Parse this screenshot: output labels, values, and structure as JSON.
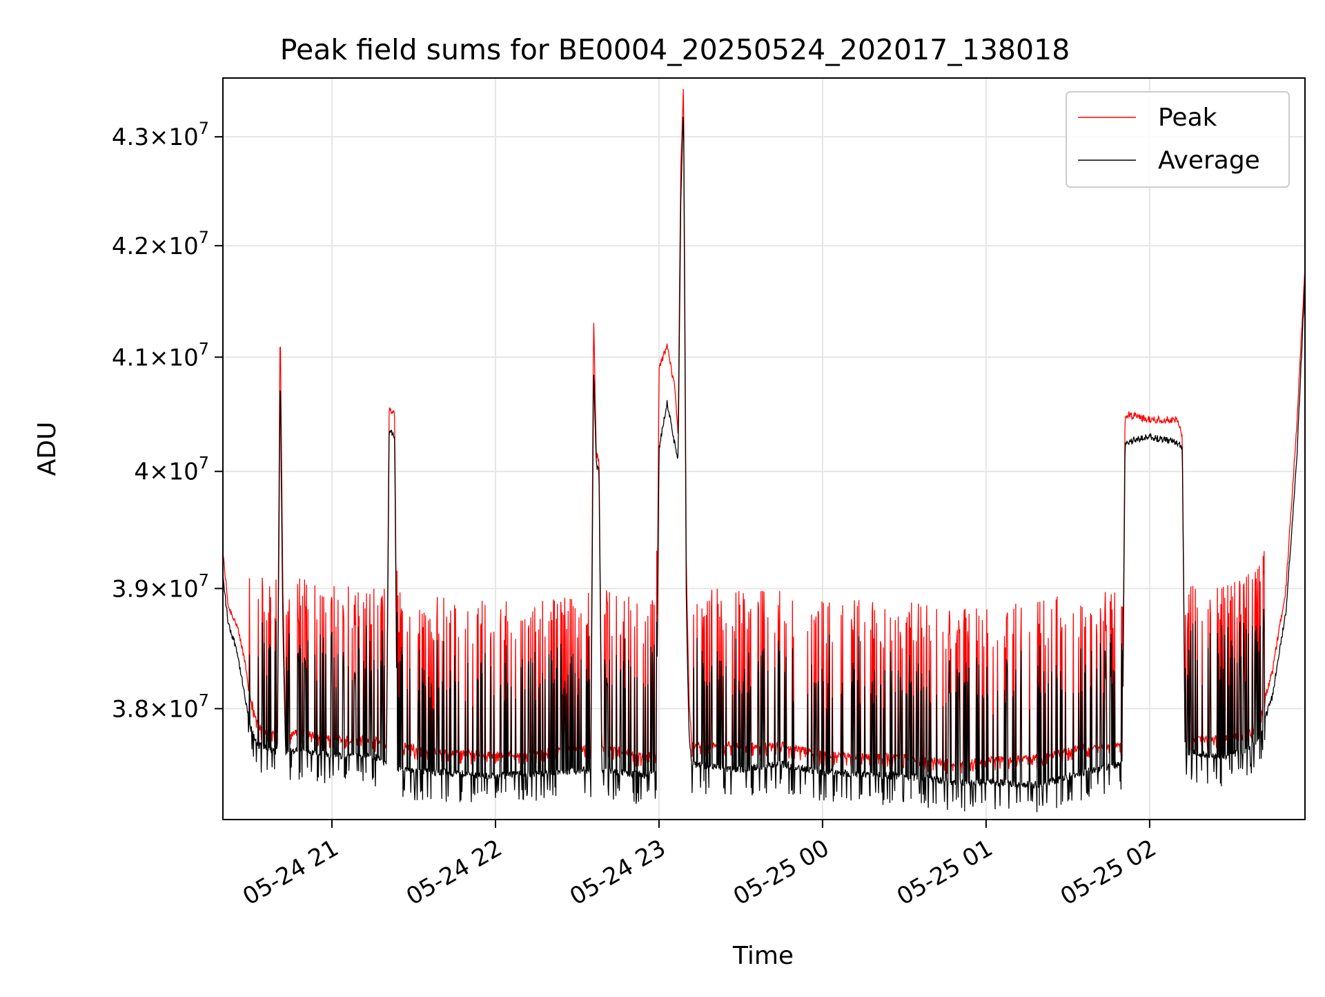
{
  "chart_data": {
    "type": "line",
    "title": "Peak field sums for BE0004_20250524_202017_138018",
    "xlabel": "Time",
    "ylabel": "ADU",
    "x_axis": {
      "type": "datetime",
      "range": [
        "2025-05-24 20:20",
        "2025-05-25 02:57"
      ],
      "ticks": [
        {
          "value": "2025-05-24 21:00",
          "label": "05-24 21"
        },
        {
          "value": "2025-05-24 22:00",
          "label": "05-24 22"
        },
        {
          "value": "2025-05-24 23:00",
          "label": "05-24 23"
        },
        {
          "value": "2025-05-25 00:00",
          "label": "05-25 00"
        },
        {
          "value": "2025-05-25 01:00",
          "label": "05-25 01"
        },
        {
          "value": "2025-05-25 02:00",
          "label": "05-25 02"
        }
      ]
    },
    "y_axis": {
      "scale": "log",
      "range": [
        37100000,
        43550000
      ],
      "ticks": [
        {
          "value": 38000000,
          "mantissa": "3.8",
          "base": "10",
          "exp": "7"
        },
        {
          "value": 39000000,
          "mantissa": "3.9",
          "base": "10",
          "exp": "7"
        },
        {
          "value": 40000000,
          "mantissa": "4",
          "base": "10",
          "exp": "7"
        },
        {
          "value": 41000000,
          "mantissa": "4.1",
          "base": "10",
          "exp": "7"
        },
        {
          "value": 42000000,
          "mantissa": "4.2",
          "base": "10",
          "exp": "7"
        },
        {
          "value": 43000000,
          "mantissa": "4.3",
          "base": "10",
          "exp": "7"
        }
      ]
    },
    "grid": true,
    "legend": {
      "position": "top-right"
    },
    "series": [
      {
        "name": "Peak",
        "color": "#ff0000",
        "points": [
          [
            "2025-05-24 20:20",
            39300000
          ],
          [
            "2025-05-24 20:22",
            38850000
          ],
          [
            "2025-05-24 20:25",
            38700000
          ],
          [
            "2025-05-24 20:28",
            38400000
          ],
          [
            "2025-05-24 20:30",
            38100000
          ],
          [
            "2025-05-24 20:33",
            37850000
          ],
          [
            "2025-05-24 20:36",
            37800000
          ],
          [
            "2025-05-24 20:40",
            37780000
          ],
          [
            "2025-05-24 20:41",
            41350000
          ],
          [
            "2025-05-24 20:42",
            39000000
          ],
          [
            "2025-05-24 20:43",
            37800000
          ],
          [
            "2025-05-24 20:50",
            37800000
          ],
          [
            "2025-05-24 21:00",
            37750000
          ],
          [
            "2025-05-24 21:15",
            37750000
          ],
          [
            "2025-05-24 21:20",
            37700000
          ],
          [
            "2025-05-24 21:21",
            40550000
          ],
          [
            "2025-05-24 21:23",
            40500000
          ],
          [
            "2025-05-24 21:24",
            37700000
          ],
          [
            "2025-05-24 21:40",
            37650000
          ],
          [
            "2025-05-24 22:00",
            37620000
          ],
          [
            "2025-05-24 22:20",
            37650000
          ],
          [
            "2025-05-24 22:35",
            37680000
          ],
          [
            "2025-05-24 22:36",
            41400000
          ],
          [
            "2025-05-24 22:37",
            40150000
          ],
          [
            "2025-05-24 22:38",
            40100000
          ],
          [
            "2025-05-24 22:39",
            37700000
          ],
          [
            "2025-05-24 22:55",
            37600000
          ],
          [
            "2025-05-24 22:59",
            37650000
          ],
          [
            "2025-05-24 23:00",
            40900000
          ],
          [
            "2025-05-24 23:03",
            41100000
          ],
          [
            "2025-05-24 23:06",
            40700000
          ],
          [
            "2025-05-24 23:07",
            40300000
          ],
          [
            "2025-05-24 23:08",
            42700000
          ],
          [
            "2025-05-24 23:09",
            43500000
          ],
          [
            "2025-05-24 23:10",
            39200000
          ],
          [
            "2025-05-24 23:11",
            38100000
          ],
          [
            "2025-05-24 23:12",
            37700000
          ],
          [
            "2025-05-24 23:30",
            37700000
          ],
          [
            "2025-05-24 23:45",
            37700000
          ],
          [
            "2025-05-25 00:00",
            37620000
          ],
          [
            "2025-05-25 00:30",
            37600000
          ],
          [
            "2025-05-25 00:50",
            37550000
          ],
          [
            "2025-05-25 01:00",
            37580000
          ],
          [
            "2025-05-25 01:20",
            37600000
          ],
          [
            "2025-05-25 01:35",
            37680000
          ],
          [
            "2025-05-25 01:50",
            37700000
          ],
          [
            "2025-05-25 01:51",
            40500000
          ],
          [
            "2025-05-25 02:00",
            40450000
          ],
          [
            "2025-05-25 02:10",
            40450000
          ],
          [
            "2025-05-25 02:12",
            40300000
          ],
          [
            "2025-05-25 02:13",
            37750000
          ],
          [
            "2025-05-25 02:25",
            37750000
          ],
          [
            "2025-05-25 02:35",
            37800000
          ],
          [
            "2025-05-25 02:40",
            37900000
          ],
          [
            "2025-05-25 02:45",
            38300000
          ],
          [
            "2025-05-25 02:50",
            39000000
          ],
          [
            "2025-05-25 02:54",
            40400000
          ],
          [
            "2025-05-25 02:57",
            41800000
          ]
        ]
      },
      {
        "name": "Average",
        "color": "#000000",
        "points": [
          [
            "2025-05-24 20:20",
            39100000
          ],
          [
            "2025-05-24 20:22",
            38700000
          ],
          [
            "2025-05-24 20:25",
            38500000
          ],
          [
            "2025-05-24 20:28",
            38100000
          ],
          [
            "2025-05-24 20:30",
            37850000
          ],
          [
            "2025-05-24 20:33",
            37700000
          ],
          [
            "2025-05-24 20:36",
            37680000
          ],
          [
            "2025-05-24 20:40",
            37650000
          ],
          [
            "2025-05-24 20:41",
            40900000
          ],
          [
            "2025-05-24 20:42",
            38700000
          ],
          [
            "2025-05-24 20:43",
            37650000
          ],
          [
            "2025-05-24 20:50",
            37650000
          ],
          [
            "2025-05-24 21:00",
            37620000
          ],
          [
            "2025-05-24 21:15",
            37620000
          ],
          [
            "2025-05-24 21:20",
            37550000
          ],
          [
            "2025-05-24 21:21",
            40350000
          ],
          [
            "2025-05-24 21:23",
            40300000
          ],
          [
            "2025-05-24 21:24",
            37500000
          ],
          [
            "2025-05-24 21:40",
            37480000
          ],
          [
            "2025-05-24 22:00",
            37450000
          ],
          [
            "2025-05-24 22:20",
            37480000
          ],
          [
            "2025-05-24 22:35",
            37500000
          ],
          [
            "2025-05-24 22:36",
            40900000
          ],
          [
            "2025-05-24 22:37",
            40050000
          ],
          [
            "2025-05-24 22:38",
            40000000
          ],
          [
            "2025-05-24 22:39",
            37500000
          ],
          [
            "2025-05-24 22:55",
            37450000
          ],
          [
            "2025-05-24 22:59",
            37500000
          ],
          [
            "2025-05-24 23:00",
            40200000
          ],
          [
            "2025-05-24 23:03",
            40600000
          ],
          [
            "2025-05-24 23:06",
            40200000
          ],
          [
            "2025-05-24 23:07",
            40100000
          ],
          [
            "2025-05-24 23:08",
            42400000
          ],
          [
            "2025-05-24 23:09",
            43300000
          ],
          [
            "2025-05-24 23:10",
            38900000
          ],
          [
            "2025-05-24 23:11",
            37800000
          ],
          [
            "2025-05-24 23:12",
            37550000
          ],
          [
            "2025-05-24 23:30",
            37500000
          ],
          [
            "2025-05-24 23:45",
            37550000
          ],
          [
            "2025-05-25 00:00",
            37480000
          ],
          [
            "2025-05-25 00:30",
            37450000
          ],
          [
            "2025-05-25 00:50",
            37400000
          ],
          [
            "2025-05-25 01:00",
            37400000
          ],
          [
            "2025-05-25 01:20",
            37380000
          ],
          [
            "2025-05-25 01:35",
            37480000
          ],
          [
            "2025-05-25 01:50",
            37550000
          ],
          [
            "2025-05-25 01:51",
            40250000
          ],
          [
            "2025-05-25 02:00",
            40300000
          ],
          [
            "2025-05-25 02:10",
            40250000
          ],
          [
            "2025-05-25 02:12",
            40200000
          ],
          [
            "2025-05-25 02:13",
            37650000
          ],
          [
            "2025-05-25 02:25",
            37600000
          ],
          [
            "2025-05-25 02:35",
            37650000
          ],
          [
            "2025-05-25 02:40",
            37750000
          ],
          [
            "2025-05-25 02:45",
            38100000
          ],
          [
            "2025-05-25 02:50",
            38800000
          ],
          [
            "2025-05-25 02:54",
            40100000
          ],
          [
            "2025-05-25 02:57",
            41700000
          ]
        ]
      }
    ]
  }
}
